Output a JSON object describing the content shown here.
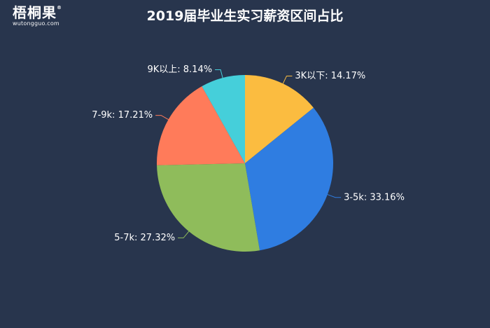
{
  "logo": {
    "name": "梧桐果",
    "registered": "®",
    "domain": "wutongguo.com"
  },
  "chart_data": {
    "type": "pie",
    "title": "2019届毕业生实习薪资区间占比",
    "slices": [
      {
        "label": "3K以下",
        "value": 14.17,
        "display": "3K以下: 14.17%",
        "color": "#fbbc40"
      },
      {
        "label": "3-5k",
        "value": 33.16,
        "display": "3-5k: 33.16%",
        "color": "#2f7de1"
      },
      {
        "label": "5-7k",
        "value": 27.32,
        "display": "5-7k: 27.32%",
        "color": "#8fbc5b"
      },
      {
        "label": "7-9k",
        "value": 17.21,
        "display": "7-9k: 17.21%",
        "color": "#ff7b5a"
      },
      {
        "label": "9K以上",
        "value": 8.14,
        "display": "9K以上: 8.14%",
        "color": "#45cfda"
      }
    ]
  }
}
